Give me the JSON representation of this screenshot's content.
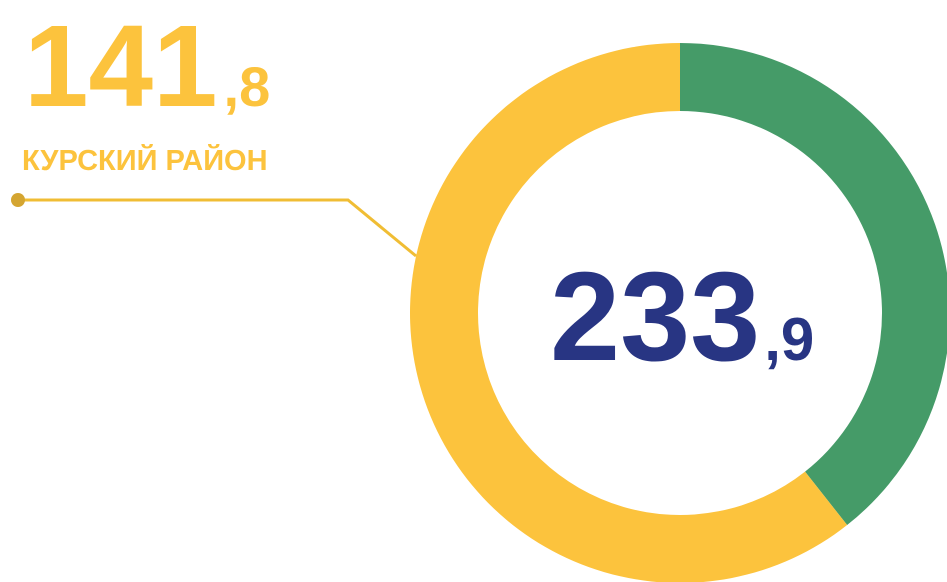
{
  "chart_data": {
    "type": "donut",
    "categories": [
      null,
      "КУРСКИЙ РАЙОН"
    ],
    "values": [
      92.1,
      141.8
    ],
    "value_labels": [
      null,
      [
        "141",
        ",8"
      ]
    ],
    "colors": [
      "#459b68",
      "#fcc33d"
    ],
    "total": 233.9,
    "total_label": [
      "233",
      ",9"
    ]
  }
}
